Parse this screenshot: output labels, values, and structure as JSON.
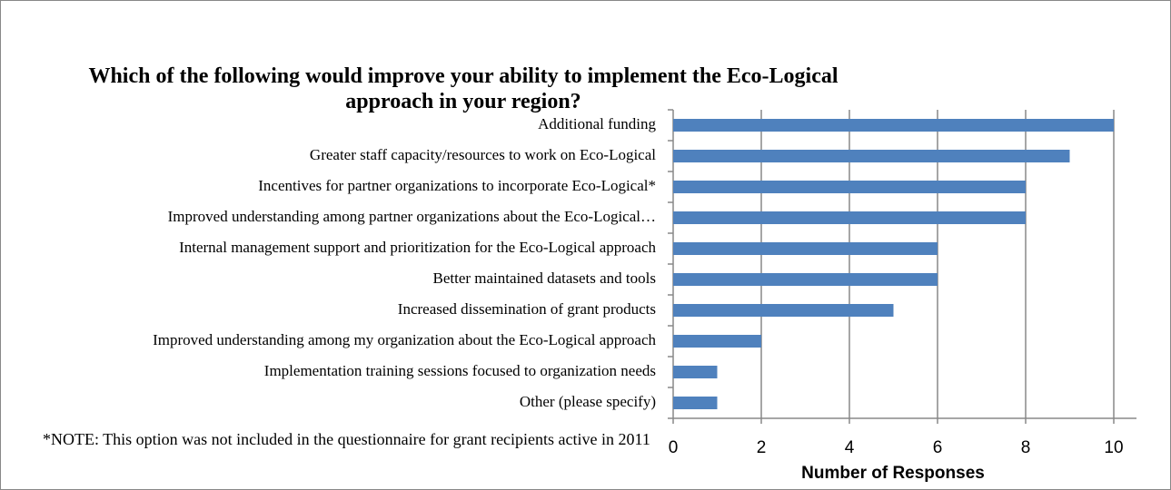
{
  "chart_data": {
    "type": "bar",
    "orientation": "horizontal",
    "title": "Which of the following would improve your ability to implement the Eco-Logical approach in your region?",
    "note": "*NOTE: This option was not included in the questionnaire for grant recipients active in 2011",
    "xlabel": "Number of Responses",
    "categories": [
      "Additional funding",
      "Greater staff capacity/resources to work on Eco-Logical",
      "Incentives for partner organizations to incorporate Eco-Logical*",
      "Improved understanding among partner organizations about the Eco-Logical…",
      "Internal management support and prioritization for the Eco-Logical approach",
      "Better maintained datasets and tools",
      "Increased dissemination of grant products",
      "Improved understanding among my organization about the Eco-Logical approach",
      "Implementation training sessions focused to organization needs",
      "Other (please specify)"
    ],
    "values": [
      10,
      9,
      8,
      8,
      6,
      6,
      5,
      2,
      1,
      1
    ],
    "color": "#4f81bd",
    "xlim": [
      0,
      10
    ],
    "xticks": [
      0,
      2,
      4,
      6,
      8,
      10
    ],
    "grid": true
  }
}
